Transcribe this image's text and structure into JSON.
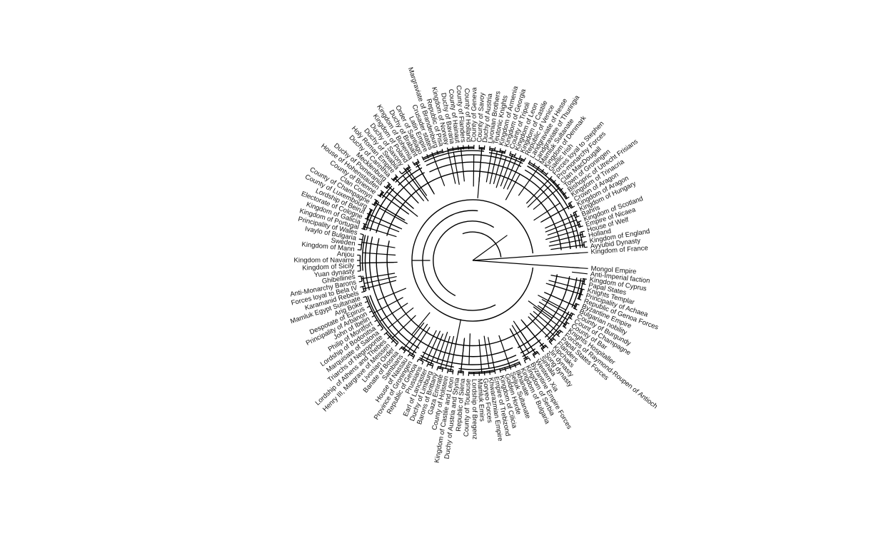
{
  "tree": {
    "highlight_colors": {
      "Kingdom of France": "#d94b7a",
      "Mongol Empire": "#4cc84a",
      "default": "#111111"
    },
    "root_angle_deg": 0,
    "leaves": [
      "Kingdom of France",
      "Ayyubid Dynasty",
      "Kingdom of England",
      "Holland",
      "House of Welf",
      "Empire of Nicaea",
      "Kingdom of Scotland",
      "Bahris",
      "Kingdom of Hungary",
      "Kingdom of Aragon",
      "Crown of Aragon",
      "Kingdom of Trinacria",
      "Bishopric of Utrecht Frisians",
      "Town of Groningen",
      "Clan MacDougall",
      "Pro-monarchy Forces",
      "Forces loyal to Stephen",
      "Gaelic Irish",
      "Kingdom of Denmark",
      "Mamluk Sultanate",
      "Landgraviate of Thuringia",
      "Landgraviate of Hesse",
      "Republic of Venice",
      "Kingdom of Castile",
      "Kingdom of Leon",
      "County of Tripoli",
      "Kingdom of Georgia",
      "Kingdom of Armenia",
      "Teutonic Knights",
      "Livonian Brothers",
      "Duchy of Austria",
      "County of Savoy",
      "County of Geneva",
      "County of Holland",
      "County of Flanders",
      "County of Hainaut",
      "Duchy of Bavaria",
      "Kingdom of Norway",
      "Republic of Pisa",
      "Margraviate of Brandenburg",
      "Crusader states",
      "Latin Empire",
      "Order of Santiago",
      "Duchy of Brabant",
      "Kingdom of Bohemia",
      "Kingdom of Poland",
      "Duchy of Saxony",
      "Duchy of Swabia",
      "Holy Roman Empire",
      "Duchy of Carinthia",
      "Mecklenburg",
      "Duchy of Pomerania",
      "House of Hohenstaufen",
      "County of Brienne",
      "Clan Comyn",
      "County of Champagne",
      "County of Luxembourg",
      "Lordship of Beirut",
      "Electorate of Cologne",
      "Kingdom of Galicia",
      "Kingdom of Portugal",
      "Principality of Wales",
      "Ivaylo of Bulgaria",
      "Sweden",
      "Kingdom of Mann",
      "Anjou",
      "Kingdom of Navarre",
      "Kingdom of Sicily",
      "Yuan dynasty",
      "Ghibellines",
      "Anti-Monarchy Barons",
      "Forces loyal to Bela IV",
      "Karamanid Rebels",
      "Mamluk Egypt Sultanate",
      "Arig Boke",
      "Despotate of Epirus",
      "Principality of Arbanon",
      "John of Ibelin",
      "Philip of Montfort",
      "Lordship of Bodonitsa",
      "Marquisate of Salona",
      "Triarchs of Negroponte",
      "Lordship of Athens and Thebes",
      "Henry III, Margrave of Meissen",
      "Livonian Order",
      "Banate of Bosnia",
      "Sambians",
      "House of Nassau",
      "Province of Groningen",
      "Republic of Genoa",
      "Prussians",
      "Earl of Lancaster",
      "Duchy of Limburg",
      "Barons of Brittany",
      "Gaza Emirate",
      "County of Holstein",
      "Kingdom of Castile and Leon",
      "Duchy of Austria and Styria",
      "Republic of Siena",
      "County of Toulouse",
      "Lordship of Bregenz",
      "Mamluk Emirs",
      "Goryeo Forces",
      "Khwarazmian Empire",
      "Empire of Trebizond",
      "Kingdom of Cilicia",
      "Golden Horde",
      "Seljuk Sultanate",
      "Ilkhanate",
      "Kingdom of Bulgaria",
      "Kingdom of Serbia",
      "Byzantine Empire Forces",
      "Western Xia",
      "Sinhala",
      "Song dynasty",
      "Jin dynasty",
      "Kipchaks",
      "Flanders",
      "Papal States Forces",
      "Forces of Raymond-Roupen of Antioch",
      "Knights Hospitaller",
      "County of Bar",
      "Count of Champagne",
      "County of Burgundy",
      "Bulgarian nobility",
      "Byzantine Empire",
      "Republic of Genoa Forces",
      "Principality of Achaea",
      "Knights Templar",
      "Papal States",
      "Kingdom of Cyprus",
      "Anti-Imperial faction",
      "Mongol Empire"
    ]
  }
}
